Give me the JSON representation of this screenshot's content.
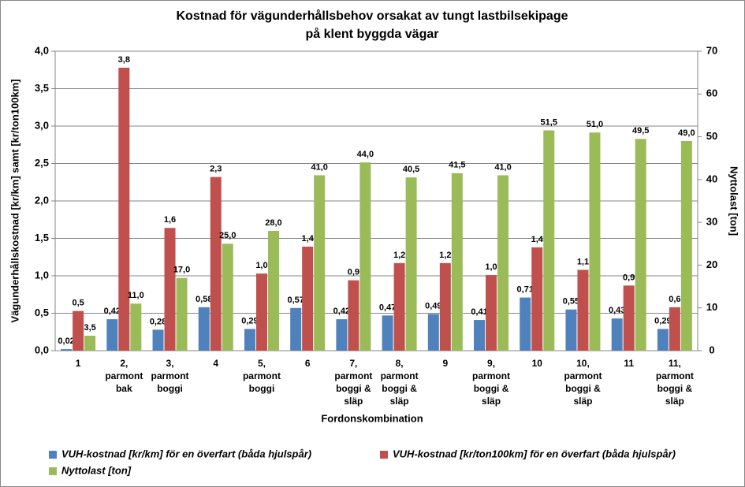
{
  "chart_data": {
    "type": "bar",
    "title": [
      "Kostnad för vägunderhållsbehov orsakat av tungt lastbilsekipage",
      "på klent byggda vägar"
    ],
    "x_label": "Fordonskombination",
    "y_label": "Vägunderhållskostnad [kr/km] samt [kr/ton100km]",
    "y2_label": "Nyttolast [ton]",
    "categories": [
      "1",
      "2, parmont bak",
      "3, parmont boggi",
      "4",
      "5, parmont boggi",
      "6",
      "7, parmont boggi & släp",
      "8, parmont boggi & släp",
      "9",
      "9, parmont boggi & släp",
      "10",
      "10, parmont boggi & släp",
      "11",
      "11, parmont boggi & släp"
    ],
    "series": [
      {
        "name": "VUH-kostnad [kr/km] för en överfart (båda hjulspår)",
        "color": "#4f81bd",
        "values": [
          0.02,
          0.42,
          0.28,
          0.58,
          0.29,
          0.57,
          0.42,
          0.47,
          0.49,
          0.41,
          0.71,
          0.55,
          0.43,
          0.29
        ],
        "value_labels": [
          "0,02",
          "0,42",
          "0,28",
          "0,58",
          "0,29",
          "0,57",
          "0,42",
          "0,47",
          "0,49",
          "0,41",
          "0,71",
          "0,55",
          "0,43",
          "0,29"
        ]
      },
      {
        "name": "VUH-kostnad [kr/ton100km] för en överfart (båda hjulspår)",
        "color": "#c0504d",
        "values": [
          0.53,
          3.78,
          1.64,
          2.32,
          1.03,
          1.39,
          0.94,
          1.17,
          1.17,
          1.01,
          1.38,
          1.08,
          0.87,
          0.58
        ],
        "value_labels": [
          "0,5",
          "3,8",
          "1,6",
          "2,3",
          "1,0",
          "1,4",
          "0,9",
          "1,2",
          "1,2",
          "1,0",
          "1,4",
          "1,1",
          "0,9",
          "0,6"
        ]
      },
      {
        "name": "Nyttolast [ton]",
        "color": "#9bbb59",
        "axis": "y2",
        "values": [
          3.5,
          11,
          17,
          25,
          28,
          41,
          44,
          40.5,
          41.5,
          41,
          51.5,
          51,
          49.5,
          49
        ],
        "value_labels": [
          "3,5",
          "11,0",
          "17,0",
          "25,0",
          "28,0",
          "41,0",
          "44,0",
          "40,5",
          "41,5",
          "41,0",
          "51,5",
          "51,0",
          "49,5",
          "49,0"
        ]
      }
    ],
    "ylim": [
      0,
      4
    ],
    "yticks": [
      {
        "value": 0,
        "label": "0,0"
      },
      {
        "value": 0.5,
        "label": "0,5"
      },
      {
        "value": 1,
        "label": "1,0"
      },
      {
        "value": 1.5,
        "label": "1,5"
      },
      {
        "value": 2,
        "label": "2,0"
      },
      {
        "value": 2.5,
        "label": "2,5"
      },
      {
        "value": 3,
        "label": "3,0"
      },
      {
        "value": 3.5,
        "label": "3,5"
      },
      {
        "value": 4,
        "label": "4,0"
      }
    ],
    "y2lim": [
      0,
      70
    ],
    "y2ticks": [
      0,
      10,
      20,
      30,
      40,
      50,
      60,
      70
    ],
    "grid": true
  }
}
